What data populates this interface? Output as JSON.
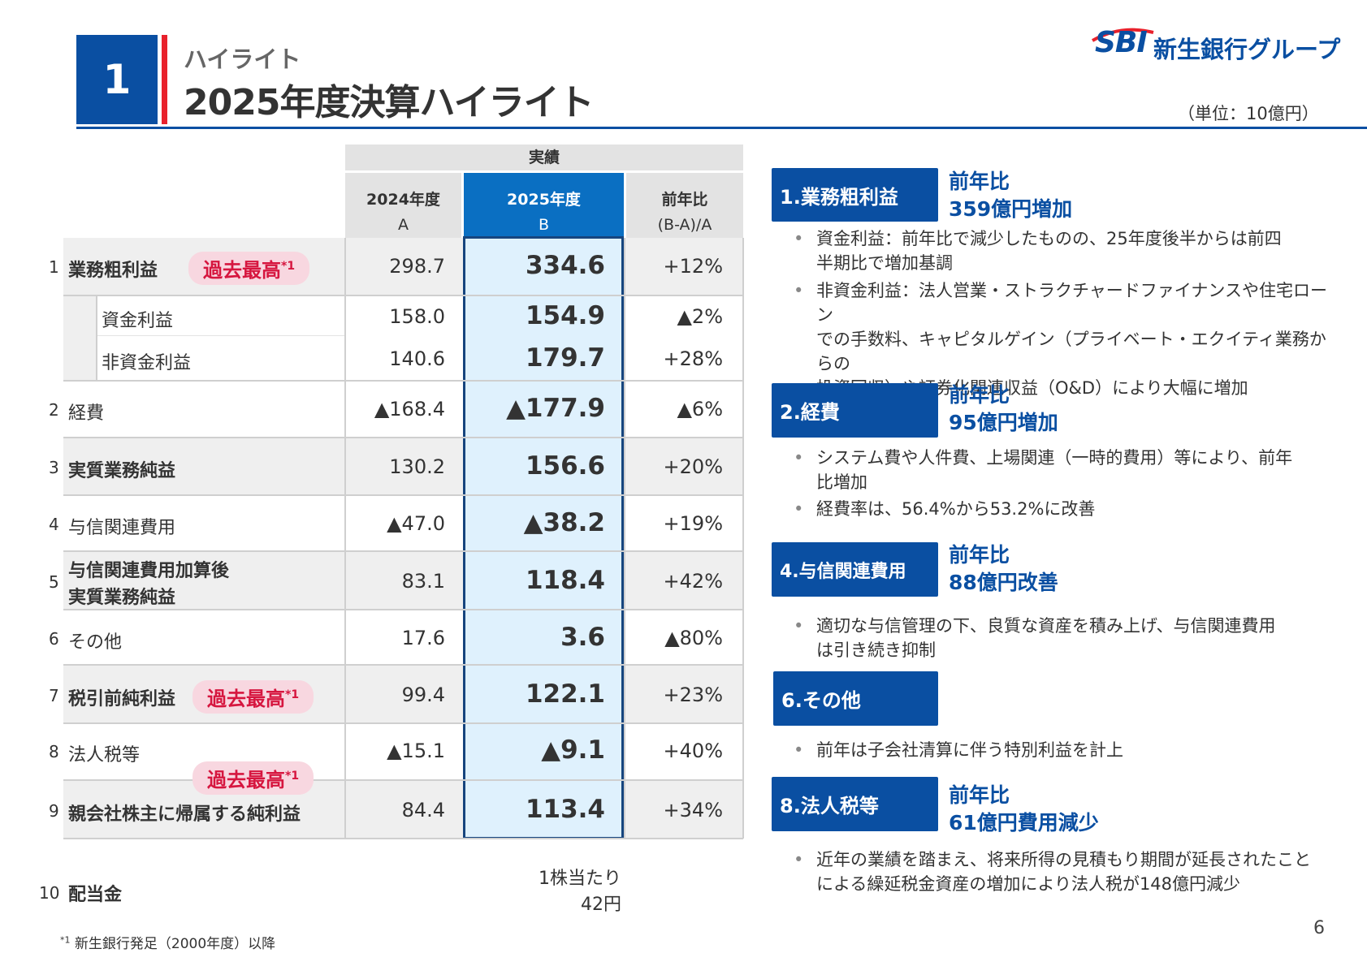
{
  "header": {
    "section_number": "1",
    "subtitle": "ハイライト",
    "title": "2025年度決算ハイライト",
    "unit": "（単位：10億円）",
    "logo_sbi": "SBI",
    "logo_text": "新生銀行グループ"
  },
  "table": {
    "group_header": "実績",
    "col_a": {
      "line1": "2024年度",
      "line2": "A"
    },
    "col_b": {
      "line1": "2025年度",
      "line2": "B"
    },
    "col_c": {
      "line1": "前年比",
      "line2": "(B-A)/A"
    },
    "badge": "過去最高",
    "badge_sup": "*1",
    "rows": [
      {
        "no": "1",
        "label": "業務粗利益",
        "a": "298.7",
        "b": "334.6",
        "c": "+12%"
      },
      {
        "no": "",
        "label": "資金利益",
        "a": "158.0",
        "b": "154.9",
        "c": "▲2%"
      },
      {
        "no": "",
        "label": "非資金利益",
        "a": "140.6",
        "b": "179.7",
        "c": "+28%"
      },
      {
        "no": "2",
        "label": "経費",
        "a": "▲168.4",
        "b": "▲177.9",
        "c": "▲6%"
      },
      {
        "no": "3",
        "label": "実質業務純益",
        "a": "130.2",
        "b": "156.6",
        "c": "+20%"
      },
      {
        "no": "4",
        "label": "与信関連費用",
        "a": "▲47.0",
        "b": "▲38.2",
        "c": "+19%"
      },
      {
        "no": "5",
        "label": "与信関連費用加算後",
        "label2": "実質業務純益",
        "a": "83.1",
        "b": "118.4",
        "c": "+42%"
      },
      {
        "no": "6",
        "label": "その他",
        "a": "17.6",
        "b": "3.6",
        "c": "▲80%"
      },
      {
        "no": "7",
        "label": "税引前純利益",
        "a": "99.4",
        "b": "122.1",
        "c": "+23%"
      },
      {
        "no": "8",
        "label": "法人税等",
        "a": "▲15.1",
        "b": "▲9.1",
        "c": "+40%"
      },
      {
        "no": "9",
        "label": "親会社株主に帰属する純利益",
        "a": "84.4",
        "b": "113.4",
        "c": "+34%"
      }
    ],
    "dividend": {
      "no": "10",
      "label": "配当金",
      "value1": "1株当たり",
      "value2": "42円"
    }
  },
  "highlights": [
    {
      "box": "1.業務粗利益",
      "head1": "前年比",
      "head2": "359億円増加",
      "bullets": [
        "資金利益：前年比で減少したものの、25年度後半からは前四半期比で増加基調",
        "非資金利益：法人営業・ストラクチャードファイナンスや住宅ローンでの手数料、キャピタルゲイン（プライベート・エクイティ業務からの投資回収）や証券化関連収益（O&D）により大幅に増加"
      ],
      "bullet_lines": [
        [
          "資金利益：前年比で減少したものの、25年度後半からは前四",
          "半期比で増加基調"
        ],
        [
          "非資金利益：法人営業・ストラクチャードファイナンスや住宅ローン",
          "での手数料、キャピタルゲイン（プライベート・エクイティ業務からの",
          "投資回収）や証券化関連収益（O&D）により大幅に増加"
        ]
      ]
    },
    {
      "box": "2.経費",
      "head1": "前年比",
      "head2": "95億円増加",
      "bullet_lines": [
        [
          "システム費や人件費、上場関連（一時的費用）等により、前年",
          "比増加"
        ],
        [
          "経費率は、56.4%から53.2%に改善"
        ]
      ]
    },
    {
      "box": "4.与信関連費用",
      "head1": "前年比",
      "head2": "88億円改善",
      "bullet_lines": [
        [
          "適切な与信管理の下、良質な資産を積み上げ、与信関連費用",
          "は引き続き抑制"
        ]
      ]
    },
    {
      "box": "6.その他",
      "bullet_lines": [
        [
          "前年は子会社清算に伴う特別利益を計上"
        ]
      ]
    },
    {
      "box": "8.法人税等",
      "head1": "前年比",
      "head2": "61億円費用減少",
      "bullet_lines": [
        [
          "近年の業績を踏まえ、将来所得の見積もり期間が延長されたこと",
          "による繰延税金資産の増加により法人税が148億円減少"
        ]
      ]
    }
  ],
  "footnote": {
    "sup": "*1",
    "text": "新生銀行発足（2000年度）以降"
  },
  "page_number": "6",
  "colors": {
    "brand_blue": "#0a4fa2",
    "accent_red": "#e8212c",
    "highlight_col": "#dff1fd",
    "badge_bg": "#f8d7e0",
    "badge_text": "#d6163f"
  }
}
